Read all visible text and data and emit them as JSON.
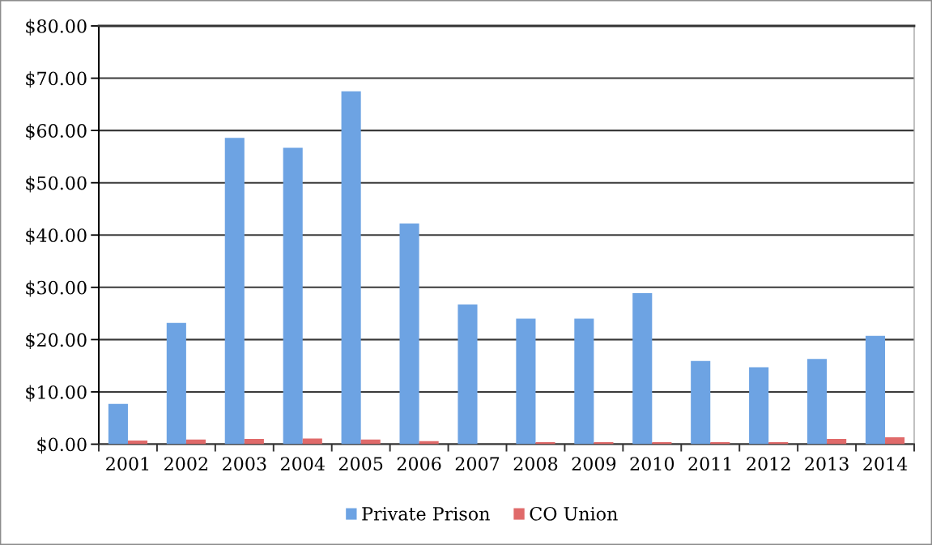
{
  "chart_data": {
    "type": "bar",
    "categories": [
      "2001",
      "2002",
      "2003",
      "2004",
      "2005",
      "2006",
      "2007",
      "2008",
      "2009",
      "2010",
      "2011",
      "2012",
      "2013",
      "2014"
    ],
    "series": [
      {
        "name": "Private Prison",
        "color": "#6da3e3",
        "values": [
          7.7,
          23.2,
          58.6,
          56.7,
          67.5,
          42.2,
          26.7,
          24.0,
          24.0,
          28.9,
          15.9,
          14.7,
          16.3,
          20.7
        ]
      },
      {
        "name": "CO Union",
        "color": "#e06a6a",
        "values": [
          0.7,
          0.9,
          1.0,
          1.1,
          0.9,
          0.6,
          null,
          0.4,
          0.4,
          0.4,
          0.4,
          0.4,
          1.0,
          1.3
        ]
      }
    ],
    "ylim": [
      0,
      80
    ],
    "yticks": [
      {
        "value": 0,
        "label": "$0.00"
      },
      {
        "value": 10,
        "label": "$10.00"
      },
      {
        "value": 20,
        "label": "$20.00"
      },
      {
        "value": 30,
        "label": "$30.00"
      },
      {
        "value": 40,
        "label": "$40.00"
      },
      {
        "value": 50,
        "label": "$50.00"
      },
      {
        "value": 60,
        "label": "$60.00"
      },
      {
        "value": 70,
        "label": "$70.00"
      },
      {
        "value": 80,
        "label": "$80.00"
      }
    ],
    "grid": "y",
    "legend": "bottom"
  }
}
